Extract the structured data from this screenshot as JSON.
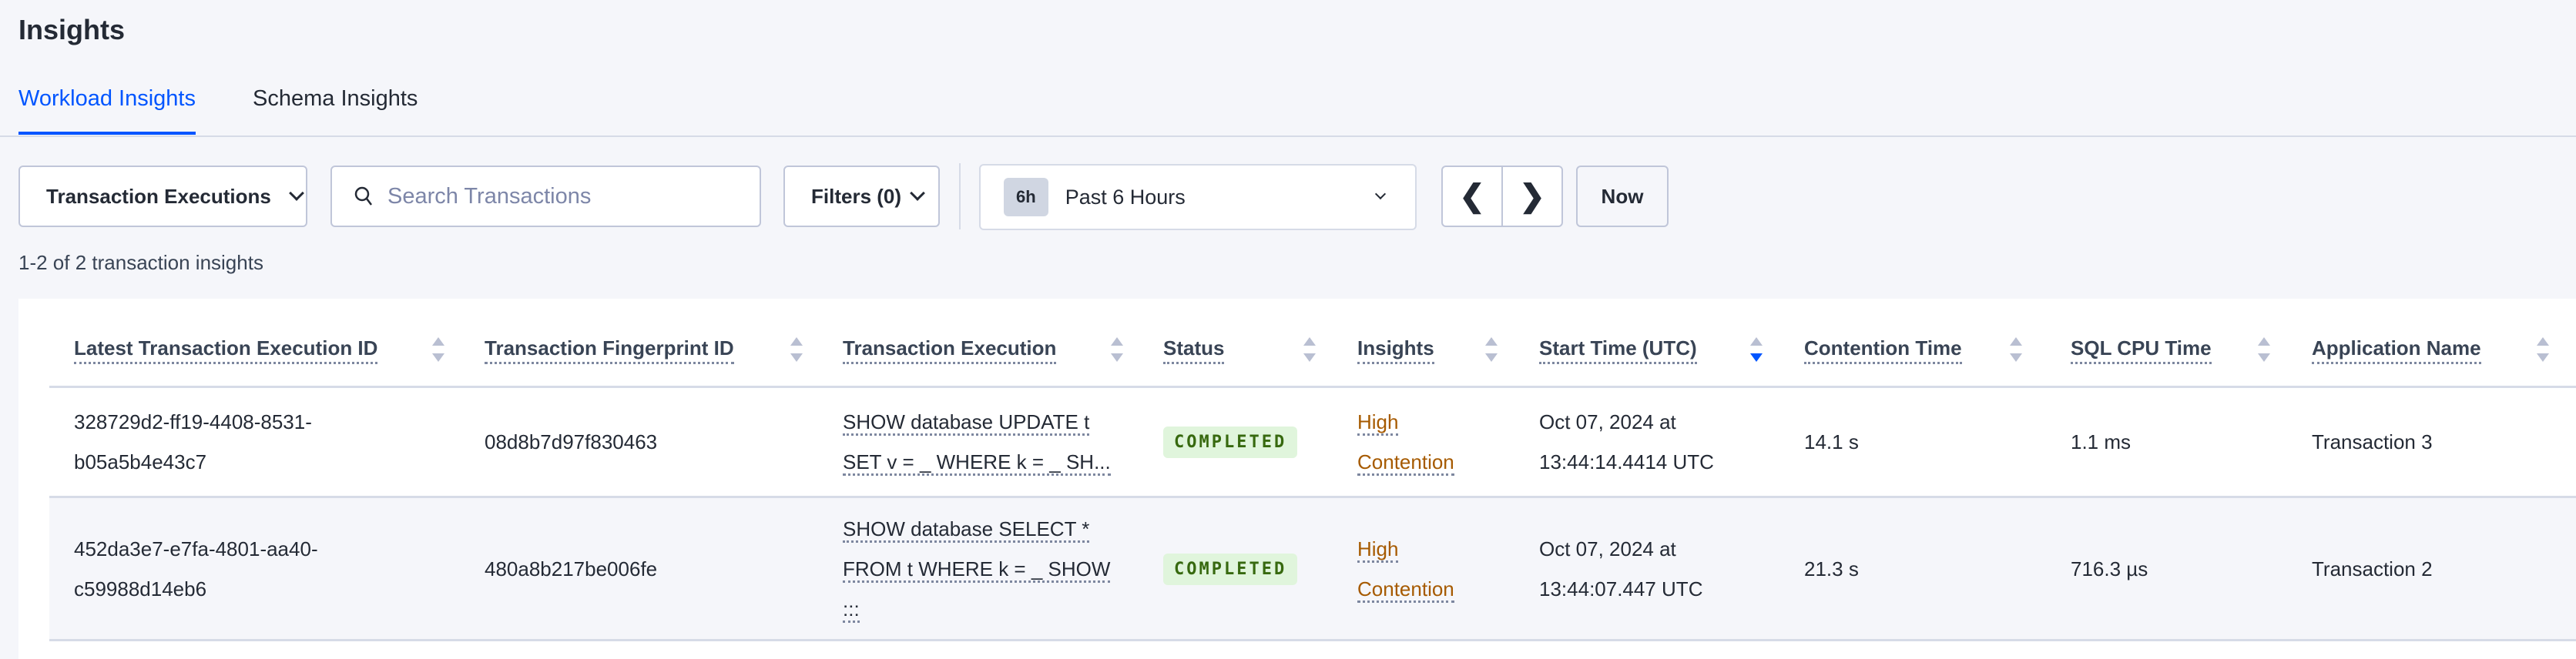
{
  "page": {
    "title": "Insights"
  },
  "tabs": [
    {
      "label": "Workload Insights",
      "active": true
    },
    {
      "label": "Schema Insights",
      "active": false
    }
  ],
  "toolbar": {
    "view_select": "Transaction Executions",
    "search_placeholder": "Search Transactions",
    "filters_label": "Filters (0)",
    "time_badge": "6h",
    "time_range": "Past 6 Hours",
    "now_label": "Now"
  },
  "summary": "1-2 of 2 transaction insights",
  "table": {
    "columns": [
      "Latest Transaction Execution ID",
      "Transaction Fingerprint ID",
      "Transaction Execution",
      "Status",
      "Insights",
      "Start Time (UTC)",
      "Contention Time",
      "SQL CPU Time",
      "Application Name"
    ],
    "sorted_column": "Start Time (UTC)",
    "sort_direction": "descending",
    "rows": [
      {
        "exec_id_1": "328729d2-ff19-4408-8531-",
        "exec_id_2": "b05a5b4e43c7",
        "fingerprint": "08d8b7d97f830463",
        "exec_1": "SHOW database UPDATE t",
        "exec_2": "SET v = _ WHERE k = _ SH...",
        "exec_3": "",
        "status": "COMPLETED",
        "insight_1": "High",
        "insight_2": "Contention",
        "start_1": "Oct 07, 2024 at",
        "start_2": "13:44:14.4414 UTC",
        "contention": "14.1 s",
        "cpu": "1.1 ms",
        "app": "Transaction 3"
      },
      {
        "exec_id_1": "452da3e7-e7fa-4801-aa40-",
        "exec_id_2": "c59988d14eb6",
        "fingerprint": "480a8b217be006fe",
        "exec_1": "SHOW database SELECT *",
        "exec_2": "FROM t WHERE k = _ SHOW",
        "exec_3": ":::",
        "status": "COMPLETED",
        "insight_1": "High",
        "insight_2": "Contention",
        "start_1": "Oct 07, 2024 at",
        "start_2": "13:44:07.447 UTC",
        "contention": "21.3 s",
        "cpu": "716.3 µs",
        "app": "Transaction 2"
      }
    ]
  },
  "colors": {
    "accent": "#0055ff",
    "completed_bg": "#e0f5dc",
    "completed_text": "#37690f",
    "insight": "#a65a00"
  }
}
